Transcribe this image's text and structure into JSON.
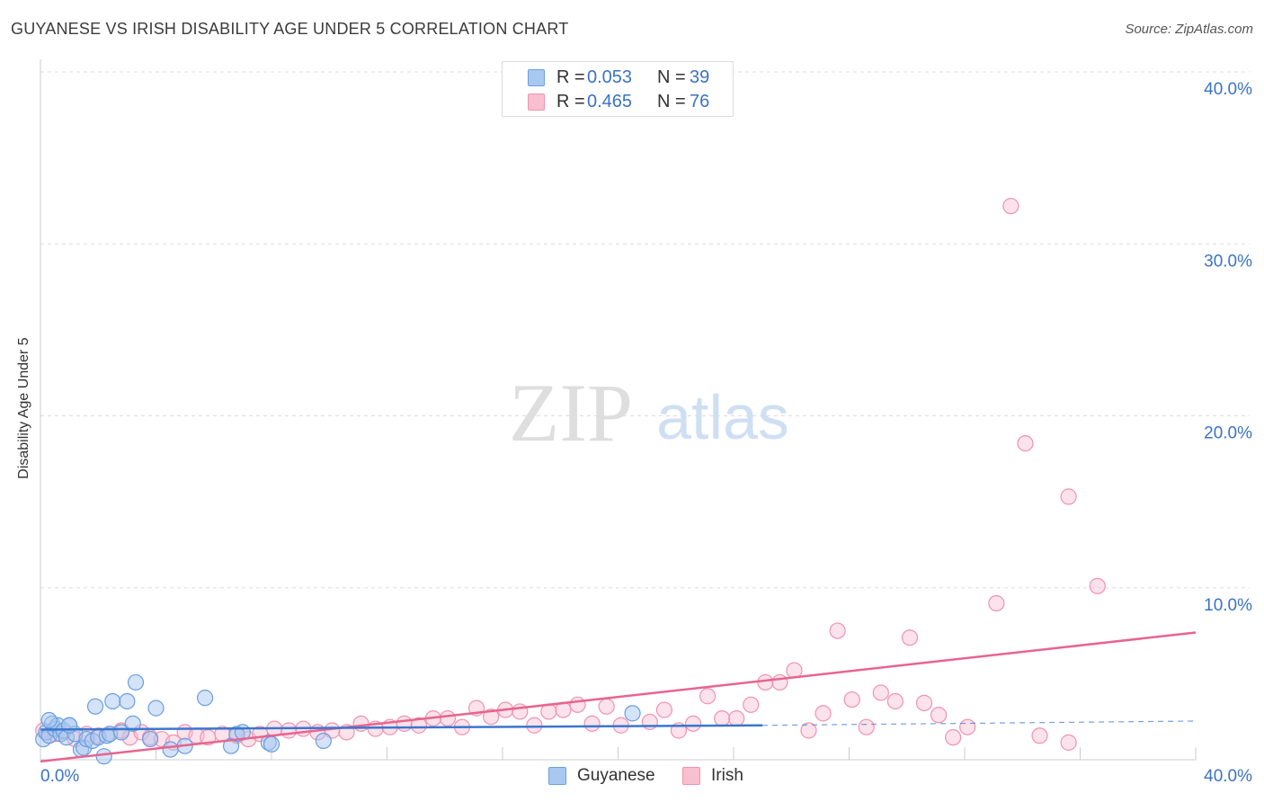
{
  "header": {
    "title": "GUYANESE VS IRISH DISABILITY AGE UNDER 5 CORRELATION CHART",
    "source": "Source: ZipAtlas.com"
  },
  "watermark": {
    "zip": "ZIP",
    "atlas": "atlas"
  },
  "legend": {
    "guyanese": {
      "r_label": "R =",
      "r_value": "0.053",
      "n_label": "N =",
      "n_value": "39"
    },
    "irish": {
      "r_label": "R =",
      "r_value": "0.465",
      "n_label": "N =",
      "n_value": "76"
    }
  },
  "bottom_legend": {
    "guyanese": "Guyanese",
    "irish": "Irish"
  },
  "colors": {
    "guyanese_fill": "#a9c8f0",
    "guyanese_stroke": "#6a9fe0",
    "guyanese_line": "#3a76cf",
    "irish_fill": "#f8bfd0",
    "irish_stroke": "#ef93b0",
    "irish_line": "#e8648e",
    "tick_text": "#3b73c4",
    "grid": "#dddddd"
  },
  "chart_data": {
    "type": "scatter",
    "title": "GUYANESE VS IRISH DISABILITY AGE UNDER 5 CORRELATION CHART",
    "xlabel": "",
    "ylabel": "Disability Age Under 5",
    "xlim": [
      0,
      40
    ],
    "ylim": [
      0,
      40
    ],
    "x_tick_labels": [
      "0.0%",
      "40.0%"
    ],
    "y_ticks": [
      {
        "value": 10,
        "label": "10.0%"
      },
      {
        "value": 20,
        "label": "20.0%"
      },
      {
        "value": 30,
        "label": "30.0%"
      },
      {
        "value": 40,
        "label": "40.0%"
      }
    ],
    "series": [
      {
        "name": "Guyanese",
        "points": [
          [
            0.1,
            1.2
          ],
          [
            0.2,
            1.6
          ],
          [
            0.3,
            1.4
          ],
          [
            0.4,
            2.1
          ],
          [
            0.5,
            1.8
          ],
          [
            0.6,
            2.0
          ],
          [
            0.7,
            1.5
          ],
          [
            0.8,
            1.7
          ],
          [
            0.9,
            1.3
          ],
          [
            1.0,
            2.0
          ],
          [
            1.2,
            1.5
          ],
          [
            1.4,
            0.6
          ],
          [
            1.5,
            0.7
          ],
          [
            1.6,
            1.2
          ],
          [
            1.8,
            1.1
          ],
          [
            1.9,
            3.1
          ],
          [
            2.0,
            1.3
          ],
          [
            2.2,
            0.2
          ],
          [
            2.3,
            1.4
          ],
          [
            2.4,
            1.5
          ],
          [
            2.5,
            3.4
          ],
          [
            2.8,
            1.6
          ],
          [
            3.0,
            3.4
          ],
          [
            3.2,
            2.1
          ],
          [
            3.3,
            4.5
          ],
          [
            3.8,
            1.2
          ],
          [
            4.0,
            3.0
          ],
          [
            4.5,
            0.6
          ],
          [
            5.0,
            0.8
          ],
          [
            5.7,
            3.6
          ],
          [
            6.6,
            0.8
          ],
          [
            6.8,
            1.5
          ],
          [
            7.0,
            1.6
          ],
          [
            7.9,
            1.0
          ],
          [
            8.0,
            0.9
          ],
          [
            9.8,
            1.1
          ],
          [
            20.5,
            2.7
          ],
          [
            0.3,
            2.3
          ],
          [
            1.0,
            2.0
          ]
        ]
      },
      {
        "name": "Irish",
        "points": [
          [
            0.1,
            1.7
          ],
          [
            0.3,
            1.4
          ],
          [
            0.5,
            1.5
          ],
          [
            0.8,
            1.6
          ],
          [
            1.2,
            1.2
          ],
          [
            1.6,
            1.5
          ],
          [
            2.0,
            1.4
          ],
          [
            2.4,
            1.5
          ],
          [
            2.8,
            1.7
          ],
          [
            3.1,
            1.3
          ],
          [
            3.5,
            1.6
          ],
          [
            3.8,
            1.3
          ],
          [
            4.2,
            1.2
          ],
          [
            4.6,
            1.0
          ],
          [
            5.0,
            1.6
          ],
          [
            5.4,
            1.4
          ],
          [
            5.8,
            1.3
          ],
          [
            6.3,
            1.5
          ],
          [
            6.8,
            1.4
          ],
          [
            7.2,
            1.2
          ],
          [
            7.6,
            1.5
          ],
          [
            8.1,
            1.8
          ],
          [
            8.6,
            1.7
          ],
          [
            9.1,
            1.8
          ],
          [
            9.6,
            1.6
          ],
          [
            10.1,
            1.7
          ],
          [
            10.6,
            1.6
          ],
          [
            11.1,
            2.1
          ],
          [
            11.6,
            1.8
          ],
          [
            12.1,
            1.9
          ],
          [
            12.6,
            2.1
          ],
          [
            13.1,
            2.0
          ],
          [
            13.6,
            2.4
          ],
          [
            14.1,
            2.4
          ],
          [
            14.6,
            1.9
          ],
          [
            15.1,
            3.0
          ],
          [
            15.6,
            2.5
          ],
          [
            16.1,
            2.9
          ],
          [
            16.6,
            2.8
          ],
          [
            17.1,
            2.0
          ],
          [
            17.6,
            2.8
          ],
          [
            18.1,
            2.9
          ],
          [
            18.6,
            3.2
          ],
          [
            19.1,
            2.1
          ],
          [
            19.6,
            3.1
          ],
          [
            20.1,
            2.0
          ],
          [
            21.1,
            2.2
          ],
          [
            21.6,
            2.9
          ],
          [
            22.1,
            1.7
          ],
          [
            22.6,
            2.1
          ],
          [
            23.1,
            3.7
          ],
          [
            23.6,
            2.4
          ],
          [
            24.1,
            2.4
          ],
          [
            24.6,
            3.2
          ],
          [
            25.1,
            4.5
          ],
          [
            25.6,
            4.5
          ],
          [
            26.1,
            5.2
          ],
          [
            26.6,
            1.7
          ],
          [
            27.1,
            2.7
          ],
          [
            27.6,
            7.5
          ],
          [
            28.1,
            3.5
          ],
          [
            28.6,
            1.9
          ],
          [
            29.1,
            3.9
          ],
          [
            29.6,
            3.4
          ],
          [
            30.1,
            7.1
          ],
          [
            30.6,
            3.3
          ],
          [
            31.1,
            2.6
          ],
          [
            31.6,
            1.3
          ],
          [
            32.1,
            1.9
          ],
          [
            33.1,
            9.1
          ],
          [
            33.6,
            32.2
          ],
          [
            34.1,
            18.4
          ],
          [
            34.6,
            1.4
          ],
          [
            35.6,
            1.0
          ],
          [
            35.6,
            15.3
          ],
          [
            36.6,
            10.1
          ]
        ]
      }
    ],
    "trend_lines": [
      {
        "series": "Guyanese",
        "x": [
          0,
          25
        ],
        "y": [
          1.75,
          2.0
        ],
        "extended_x": [
          25,
          40
        ],
        "extended_y": [
          2.0,
          2.25
        ]
      },
      {
        "series": "Irish",
        "x": [
          0,
          40
        ],
        "y": [
          -0.1,
          7.4
        ]
      }
    ]
  }
}
